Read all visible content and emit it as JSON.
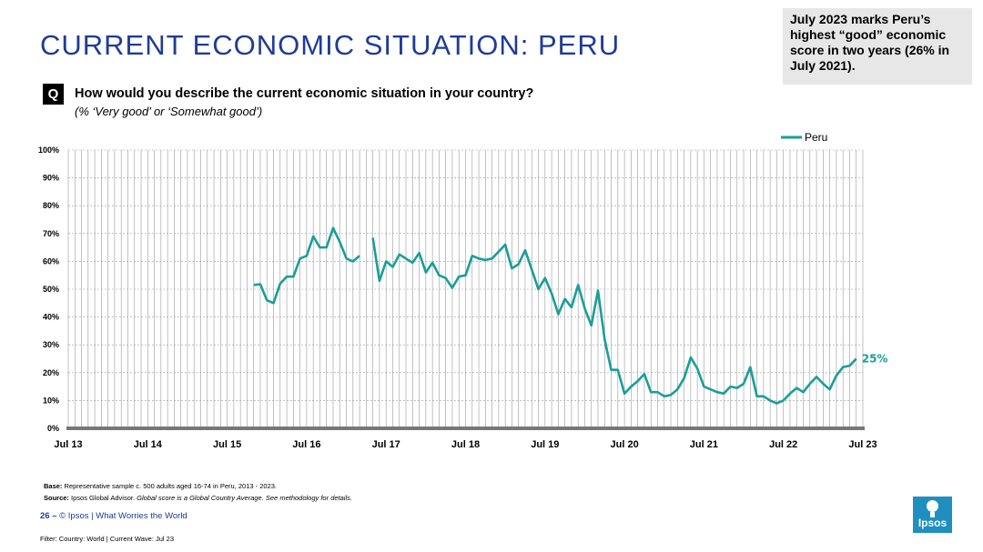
{
  "title": "CURRENT ECONOMIC SITUATION: PERU",
  "callout": "July 2023 marks Peru’s highest “good” economic score in two years (26% in July 2021).",
  "question": {
    "badge": "Q",
    "text": "How would you describe the current economic situation in your country?",
    "subtext": "(% ‘Very good’ or ‘Somewhat good’)"
  },
  "footer": {
    "base_label": "Base:",
    "base_text": " Representative sample c. 500 adults aged 16-74 in Peru, 2013 - 2023.",
    "source_label": "Source:",
    "source_text": " Ipsos Global Advisor. ",
    "source_italic": "Global score is a Global Country Average. See methodology for details.",
    "page_number": "26",
    "page_sep": " – ",
    "copyright": "© Ipsos | What Worries the World",
    "filter": "Filter: Country: World | Current Wave: Jul 23"
  },
  "logo_text": "Ipsos",
  "colors": {
    "title": "#1f3c96",
    "series": "#1a9e99",
    "label": "#1a9e99"
  },
  "chart_data": {
    "type": "line",
    "x_tick_labels": [
      "Jul 13",
      "Jul 14",
      "Jul 15",
      "Jul 16",
      "Jul 17",
      "Jul 18",
      "Jul 19",
      "Jul 20",
      "Jul 21",
      "Jul 22",
      "Jul 23"
    ],
    "y_tick_labels": [
      "0%",
      "10%",
      "20%",
      "30%",
      "40%",
      "50%",
      "60%",
      "70%",
      "80%",
      "90%",
      "100%"
    ],
    "ylim": [
      0,
      100
    ],
    "grid": "vertical per month, horizontal per 10%",
    "legend_position": "top-right",
    "end_label": "25%",
    "series": [
      {
        "name": "Peru",
        "x_months_note": "",
        "segments": [
          [
            [
              28,
              51.5
            ],
            [
              29,
              51.8
            ],
            [
              30,
              46
            ],
            [
              31,
              45
            ],
            [
              32,
              52
            ],
            [
              33,
              54.5
            ],
            [
              34,
              54.5
            ],
            [
              35,
              61
            ],
            [
              36,
              62
            ],
            [
              37,
              69
            ],
            [
              38,
              65
            ],
            [
              39,
              65
            ],
            [
              40,
              72
            ],
            [
              41,
              67
            ],
            [
              42,
              61
            ],
            [
              43,
              60
            ],
            [
              44,
              62
            ]
          ],
          [
            [
              46,
              68.5
            ],
            [
              47,
              53
            ],
            [
              48,
              60
            ],
            [
              49,
              58
            ],
            [
              50,
              62.5
            ],
            [
              51,
              61
            ],
            [
              52,
              59.5
            ],
            [
              53,
              63
            ],
            [
              54,
              56
            ],
            [
              55,
              59.5
            ],
            [
              56,
              55
            ],
            [
              57,
              54
            ],
            [
              58,
              50.5
            ],
            [
              59,
              54.5
            ],
            [
              60,
              55
            ],
            [
              61,
              62
            ],
            [
              62,
              61
            ],
            [
              63,
              60.5
            ],
            [
              64,
              61
            ],
            [
              65,
              63.5
            ],
            [
              66,
              66
            ],
            [
              67,
              57.5
            ],
            [
              68,
              59
            ],
            [
              69,
              64
            ],
            [
              70,
              57
            ],
            [
              71,
              50
            ],
            [
              72,
              54
            ],
            [
              73,
              48.5
            ],
            [
              74,
              41
            ],
            [
              75,
              46.5
            ],
            [
              76,
              43.5
            ],
            [
              77,
              51.5
            ],
            [
              78,
              43
            ],
            [
              79,
              37
            ],
            [
              80,
              49.5
            ],
            [
              81,
              32
            ],
            [
              82,
              21
            ],
            [
              83,
              21
            ],
            [
              84,
              12.5
            ],
            [
              85,
              15
            ],
            [
              86,
              17
            ],
            [
              87,
              19.5
            ],
            [
              88,
              13
            ],
            [
              89,
              13
            ],
            [
              90,
              11.5
            ],
            [
              91,
              12
            ],
            [
              92,
              14
            ],
            [
              93,
              18
            ],
            [
              94,
              25.5
            ],
            [
              95,
              21.5
            ],
            [
              96,
              15
            ],
            [
              97,
              14
            ],
            [
              98,
              13
            ],
            [
              99,
              12.5
            ],
            [
              100,
              15
            ],
            [
              101,
              14.5
            ],
            [
              102,
              16
            ],
            [
              103,
              22
            ],
            [
              104,
              11.5
            ],
            [
              105,
              11.5
            ],
            [
              106,
              10
            ],
            [
              107,
              9
            ],
            [
              108,
              10
            ],
            [
              109,
              12.5
            ],
            [
              110,
              14.5
            ],
            [
              111,
              13
            ],
            [
              112,
              16
            ],
            [
              113,
              18.5
            ],
            [
              114,
              16
            ],
            [
              115,
              14
            ],
            [
              116,
              19
            ],
            [
              117,
              22
            ],
            [
              118,
              22.5
            ],
            [
              119,
              25
            ]
          ]
        ]
      }
    ]
  }
}
